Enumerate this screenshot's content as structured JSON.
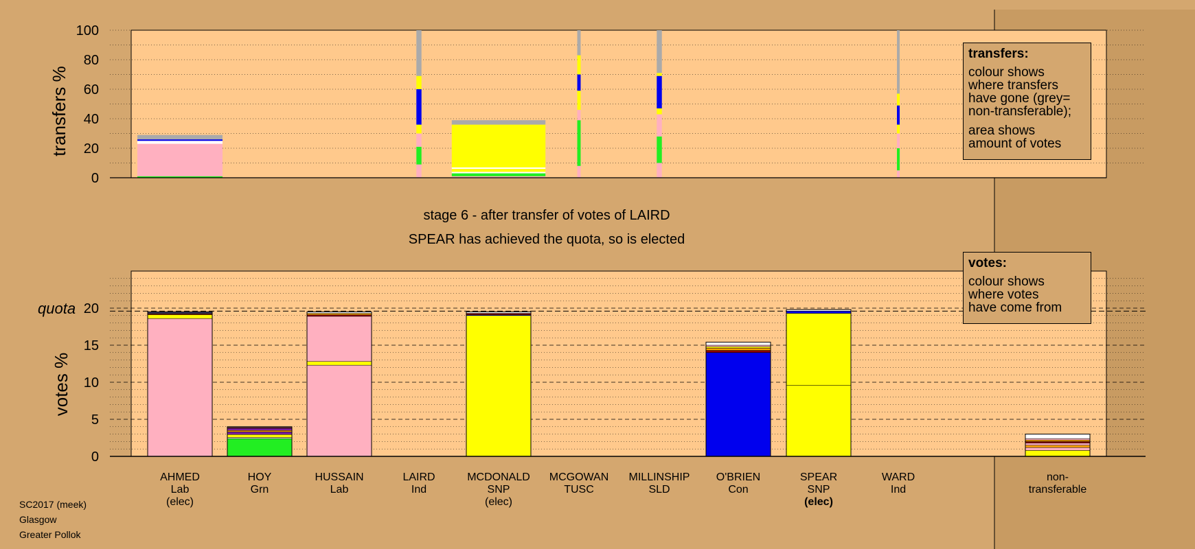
{
  "footer": {
    "line1": "SC2017 (meek)",
    "line2": "Glasgow",
    "line3": "Greater Pollok"
  },
  "stage": {
    "line1": "stage 6 - after transfer of votes of LAIRD",
    "line2": "SPEAR has achieved the quota, so is elected"
  },
  "legend_transfers": {
    "title": "transfers:",
    "lines": [
      "colour shows",
      "where transfers",
      "have gone (grey=",
      "non-transferable);"
    ],
    "lines2": [
      "area shows",
      "amount of votes"
    ]
  },
  "legend_votes": {
    "title": "votes:",
    "lines": [
      "colour shows",
      "where votes",
      "have come from"
    ]
  },
  "colors": {
    "Lab": "#ffb0c0",
    "Grn": "#22ee22",
    "SNP": "#ffff00",
    "Con": "#0000ee",
    "SLD": "#ffa500",
    "TUSC": "#8b0000",
    "Ind": "#a0522d",
    "Ind2": "#7b1fa2",
    "nontransferable": "#aaaaaa",
    "white": "#ffffff"
  },
  "chart_data": [
    {
      "type": "bar",
      "name": "transfers",
      "ylabel": "transfers %",
      "ylim": [
        0,
        100
      ],
      "yticks": [
        0,
        20,
        40,
        60,
        80,
        100
      ],
      "bars": [
        {
          "candidate": "AHMED",
          "width_share": 1.0,
          "segments": [
            {
              "party": "Grn",
              "value": 1
            },
            {
              "party": "Lab",
              "value": 22
            },
            {
              "party": "white",
              "value": 2
            },
            {
              "party": "Con",
              "value": 1
            },
            {
              "party": "nontransferable",
              "value": 3
            }
          ]
        },
        {
          "candidate": "LAIRD",
          "width_share": 0.06,
          "segments": [
            {
              "party": "Lab",
              "value": 9
            },
            {
              "party": "Grn",
              "value": 12
            },
            {
              "party": "Lab",
              "value": 9
            },
            {
              "party": "SNP",
              "value": 6
            },
            {
              "party": "Con",
              "value": 24
            },
            {
              "party": "SNP",
              "value": 9
            },
            {
              "party": "nontransferable",
              "value": 31
            }
          ]
        },
        {
          "candidate": "MCDONALD",
          "width_share": 1.1,
          "segments": [
            {
              "party": "Lab",
              "value": 1
            },
            {
              "party": "Grn",
              "value": 2
            },
            {
              "party": "white",
              "value": 1
            },
            {
              "party": "SNP",
              "value": 2
            },
            {
              "party": "white",
              "value": 1
            },
            {
              "party": "SNP",
              "value": 29
            },
            {
              "party": "nontransferable",
              "value": 3
            }
          ]
        },
        {
          "candidate": "MCGOWAN",
          "width_share": 0.04,
          "segments": [
            {
              "party": "Lab",
              "value": 8
            },
            {
              "party": "Grn",
              "value": 31
            },
            {
              "party": "Lab",
              "value": 7
            },
            {
              "party": "SNP",
              "value": 13
            },
            {
              "party": "Con",
              "value": 11
            },
            {
              "party": "SNP",
              "value": 13
            },
            {
              "party": "nontransferable",
              "value": 17
            }
          ]
        },
        {
          "candidate": "MILLINSHIP",
          "width_share": 0.06,
          "segments": [
            {
              "party": "Lab",
              "value": 10
            },
            {
              "party": "Grn",
              "value": 18
            },
            {
              "party": "Lab",
              "value": 15
            },
            {
              "party": "SNP",
              "value": 4
            },
            {
              "party": "Con",
              "value": 22
            },
            {
              "party": "SNP",
              "value": 2
            },
            {
              "party": "nontransferable",
              "value": 29
            }
          ]
        },
        {
          "candidate": "WARD",
          "width_share": 0.03,
          "segments": [
            {
              "party": "Lab",
              "value": 5
            },
            {
              "party": "Grn",
              "value": 15
            },
            {
              "party": "Lab",
              "value": 10
            },
            {
              "party": "SNP",
              "value": 6
            },
            {
              "party": "Con",
              "value": 13
            },
            {
              "party": "SNP",
              "value": 8
            },
            {
              "party": "nontransferable",
              "value": 43
            }
          ]
        }
      ]
    },
    {
      "type": "bar",
      "name": "votes",
      "ylabel": "votes %",
      "ylim": [
        0,
        25
      ],
      "yticks": [
        0,
        5,
        10,
        15,
        20
      ],
      "quota": 19.6,
      "quota_label": "quota",
      "categories": [
        "AHMED",
        "HOY",
        "HUSSAIN",
        "LAIRD",
        "MCDONALD",
        "MCGOWAN",
        "MILLINSHIP",
        "O'BRIEN",
        "SPEAR",
        "WARD",
        "non-transferable"
      ],
      "labels": [
        {
          "name": "AHMED",
          "party": "Lab",
          "status": "(elec)",
          "bold_status": false
        },
        {
          "name": "HOY",
          "party": "Grn",
          "status": "",
          "bold_status": false
        },
        {
          "name": "HUSSAIN",
          "party": "Lab",
          "status": "",
          "bold_status": false
        },
        {
          "name": "LAIRD",
          "party": "Ind",
          "status": "",
          "bold_status": false
        },
        {
          "name": "MCDONALD",
          "party": "SNP",
          "status": "(elec)",
          "bold_status": false
        },
        {
          "name": "MCGOWAN",
          "party": "TUSC",
          "status": "",
          "bold_status": false
        },
        {
          "name": "MILLINSHIP",
          "party": "SLD",
          "status": "",
          "bold_status": false
        },
        {
          "name": "O'BRIEN",
          "party": "Con",
          "status": "",
          "bold_status": false
        },
        {
          "name": "SPEAR",
          "party": "SNP",
          "status": "(elec)",
          "bold_status": true
        },
        {
          "name": "WARD",
          "party": "Ind",
          "status": "",
          "bold_status": false
        },
        {
          "name": "non-",
          "party": "transferable",
          "status": "",
          "bold_status": false
        }
      ],
      "bars": [
        {
          "candidate": "AHMED",
          "total": 19.5,
          "segments": [
            {
              "party": "Lab",
              "value": 18.6
            },
            {
              "party": "SNP",
              "value": 0.5
            },
            {
              "party": "TUSC",
              "value": 0.1
            },
            {
              "party": "SLD",
              "value": 0.1
            },
            {
              "party": "Con",
              "value": 0.1
            },
            {
              "party": "white",
              "value": 0.1
            }
          ]
        },
        {
          "candidate": "HOY",
          "total": 4.0,
          "segments": [
            {
              "party": "Grn",
              "value": 2.4
            },
            {
              "party": "white",
              "value": 0.15
            },
            {
              "party": "SNP",
              "value": 0.4
            },
            {
              "party": "Ind2",
              "value": 0.35
            },
            {
              "party": "SLD",
              "value": 0.2
            },
            {
              "party": "Ind2",
              "value": 0.3
            },
            {
              "party": "TUSC",
              "value": 0.1
            },
            {
              "party": "white",
              "value": 0.1
            }
          ]
        },
        {
          "candidate": "HUSSAIN",
          "total": 19.5,
          "segments": [
            {
              "party": "Lab",
              "value": 12.3
            },
            {
              "party": "SNP",
              "value": 0.5
            },
            {
              "party": "Lab",
              "value": 6.1
            },
            {
              "party": "TUSC",
              "value": 0.2
            },
            {
              "party": "SLD",
              "value": 0.2
            },
            {
              "party": "white",
              "value": 0.2
            }
          ]
        },
        {
          "candidate": "LAIRD",
          "total": 0,
          "segments": []
        },
        {
          "candidate": "MCDONALD",
          "total": 19.5,
          "segments": [
            {
              "party": "SNP",
              "value": 19.0
            },
            {
              "party": "Con",
              "value": 0.1
            },
            {
              "party": "TUSC",
              "value": 0.2
            },
            {
              "party": "white",
              "value": 0.2
            }
          ]
        },
        {
          "candidate": "MCGOWAN",
          "total": 0,
          "segments": []
        },
        {
          "candidate": "MILLINSHIP",
          "total": 0,
          "segments": []
        },
        {
          "candidate": "O'BRIEN",
          "total": 15.4,
          "segments": [
            {
              "party": "Con",
              "value": 14.0
            },
            {
              "party": "TUSC",
              "value": 0.3
            },
            {
              "party": "SLD",
              "value": 0.3
            },
            {
              "party": "SNP",
              "value": 0.2
            },
            {
              "party": "Lab",
              "value": 0.2
            },
            {
              "party": "white",
              "value": 0.4
            }
          ]
        },
        {
          "candidate": "SPEAR",
          "total": 19.8,
          "segments": [
            {
              "party": "SNP",
              "value": 9.6
            },
            {
              "party": "SNP",
              "value": 9.7
            },
            {
              "party": "Con",
              "value": 0.3
            },
            {
              "party": "white",
              "value": 0.2
            }
          ]
        },
        {
          "candidate": "WARD",
          "total": 0,
          "segments": []
        },
        {
          "candidate": "non-transferable",
          "total": 3.0,
          "segments": [
            {
              "party": "SNP",
              "value": 0.8
            },
            {
              "party": "Lab",
              "value": 0.4
            },
            {
              "party": "SLD",
              "value": 0.3
            },
            {
              "party": "Lab",
              "value": 0.3
            },
            {
              "party": "TUSC",
              "value": 0.2
            },
            {
              "party": "SLD",
              "value": 0.2
            },
            {
              "party": "Lab",
              "value": 0.2
            },
            {
              "party": "white",
              "value": 0.6
            }
          ]
        }
      ]
    }
  ]
}
